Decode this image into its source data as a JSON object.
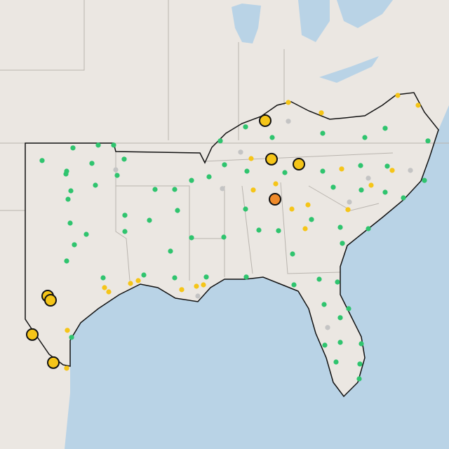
{
  "map_data": {
    "type": "point-map",
    "marker_groups": [
      {
        "color": "#2fc46e",
        "size": "small",
        "lon": [
          -99.6,
          -97.8,
          -96.7,
          -101.8,
          -100.05,
          -100.1,
          -98.25,
          -95.95,
          -96.45,
          -98.0,
          -99.75,
          -93.75,
          -92.35,
          -99.95,
          -91.15,
          -89.9,
          -89.1,
          -87.3,
          -85.4,
          -81.8,
          -78.8,
          -77.35,
          -74.3,
          -88.8,
          -87.2,
          -84.5,
          -81.8,
          -79.1,
          -77.2,
          -74.55,
          -81.05,
          -79.05,
          -77.35,
          -92.15,
          -95.9,
          -94.15,
          -99.8,
          -98.65,
          -99.5,
          -95.9,
          -91.15,
          -87.3,
          -88.85,
          -86.35,
          -84.95,
          -82.6,
          -80.55,
          -78.55,
          -76.05,
          -92.65,
          -100.05,
          -94.55,
          -92.35,
          -90.1,
          -87.25,
          -83.85,
          -82.05,
          -80.75,
          -80.4,
          -81.7,
          -79.95,
          -80.55,
          -80.55,
          -79.05,
          -81.65,
          -80.85,
          -79.15,
          -79.2,
          -97.45,
          -99.7,
          -83.95
        ],
        "lat": [
          36.62,
          36.76,
          36.76,
          35.99,
          35.46,
          35.32,
          35.85,
          36.06,
          35.25,
          34.76,
          34.48,
          34.55,
          34.55,
          34.06,
          35.0,
          35.18,
          36.97,
          37.67,
          37.14,
          37.35,
          37.14,
          37.6,
          36.97,
          35.78,
          35.46,
          35.39,
          35.46,
          35.74,
          35.71,
          35.0,
          34.66,
          34.52,
          34.41,
          33.5,
          33.26,
          33.01,
          32.87,
          32.31,
          31.79,
          32.45,
          32.14,
          33.57,
          32.17,
          32.52,
          32.49,
          33.05,
          32.66,
          32.59,
          34.13,
          31.47,
          30.98,
          30.28,
          30.14,
          30.18,
          30.18,
          29.79,
          30.07,
          29.93,
          31.86,
          28.81,
          28.6,
          28.15,
          26.92,
          26.85,
          26.78,
          25.94,
          25.84,
          25.1,
          30.14,
          27.17,
          31.33
        ]
      },
      {
        "color": "#f5c518",
        "size": "small",
        "lon": [
          -84.25,
          -81.9,
          -86.9,
          -80.45,
          -76.85,
          -78.35,
          -86.75,
          -85.15,
          -84.0,
          -82.85,
          -80.0,
          -83.05,
          -97.35,
          -97.05,
          -95.5,
          -94.95,
          -91.85,
          -100.0,
          -100.05,
          -76.45,
          -75.0,
          -90.3,
          -90.8
        ],
        "lat": [
          38.89,
          38.37,
          36.09,
          35.57,
          35.5,
          34.76,
          34.52,
          34.83,
          33.57,
          33.78,
          33.54,
          32.59,
          29.65,
          29.44,
          29.86,
          30.0,
          29.55,
          27.52,
          25.63,
          39.24,
          38.75,
          29.79,
          29.72
        ]
      },
      {
        "color": "#c4c4c4",
        "size": "small",
        "lon": [
          -84.25,
          -87.65,
          -96.55,
          -79.9,
          -78.55,
          -75.55,
          -81.45,
          -88.95,
          -90.7
        ],
        "lat": [
          37.95,
          36.41,
          35.53,
          33.92,
          35.11,
          35.5,
          27.66,
          34.59,
          29.23
        ]
      },
      {
        "color": "#f5c518",
        "size": "large",
        "lon": [
          -85.9,
          -85.45,
          -83.5,
          -101.4,
          -101.2,
          -102.5,
          -101.0
        ],
        "lat": [
          37.98,
          36.06,
          35.81,
          29.23,
          29.02,
          27.31,
          25.91
        ]
      },
      {
        "color": "#ef8a2a",
        "size": "large",
        "lon": [
          -85.2
        ],
        "lat": [
          34.06
        ]
      }
    ]
  }
}
